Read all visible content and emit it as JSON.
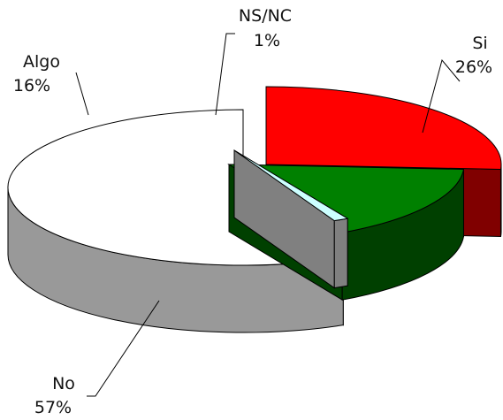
{
  "chart_data": {
    "type": "pie",
    "title": "",
    "style": "3d-exploded",
    "categories": [
      "Si",
      "Algo",
      "NS/NC",
      "No"
    ],
    "values": [
      26,
      16,
      1,
      57
    ],
    "value_labels": [
      "26%",
      "16%",
      "1%",
      "57%"
    ],
    "colors": {
      "Si": {
        "top": "#ff0000",
        "side": "#800000"
      },
      "Algo": {
        "top": "#008000",
        "side": "#004000"
      },
      "NS/NC": {
        "top": "#ccffff",
        "side": "#808080"
      },
      "No": {
        "top": "#ffffff",
        "side": "#999999"
      }
    },
    "legend": "none"
  }
}
